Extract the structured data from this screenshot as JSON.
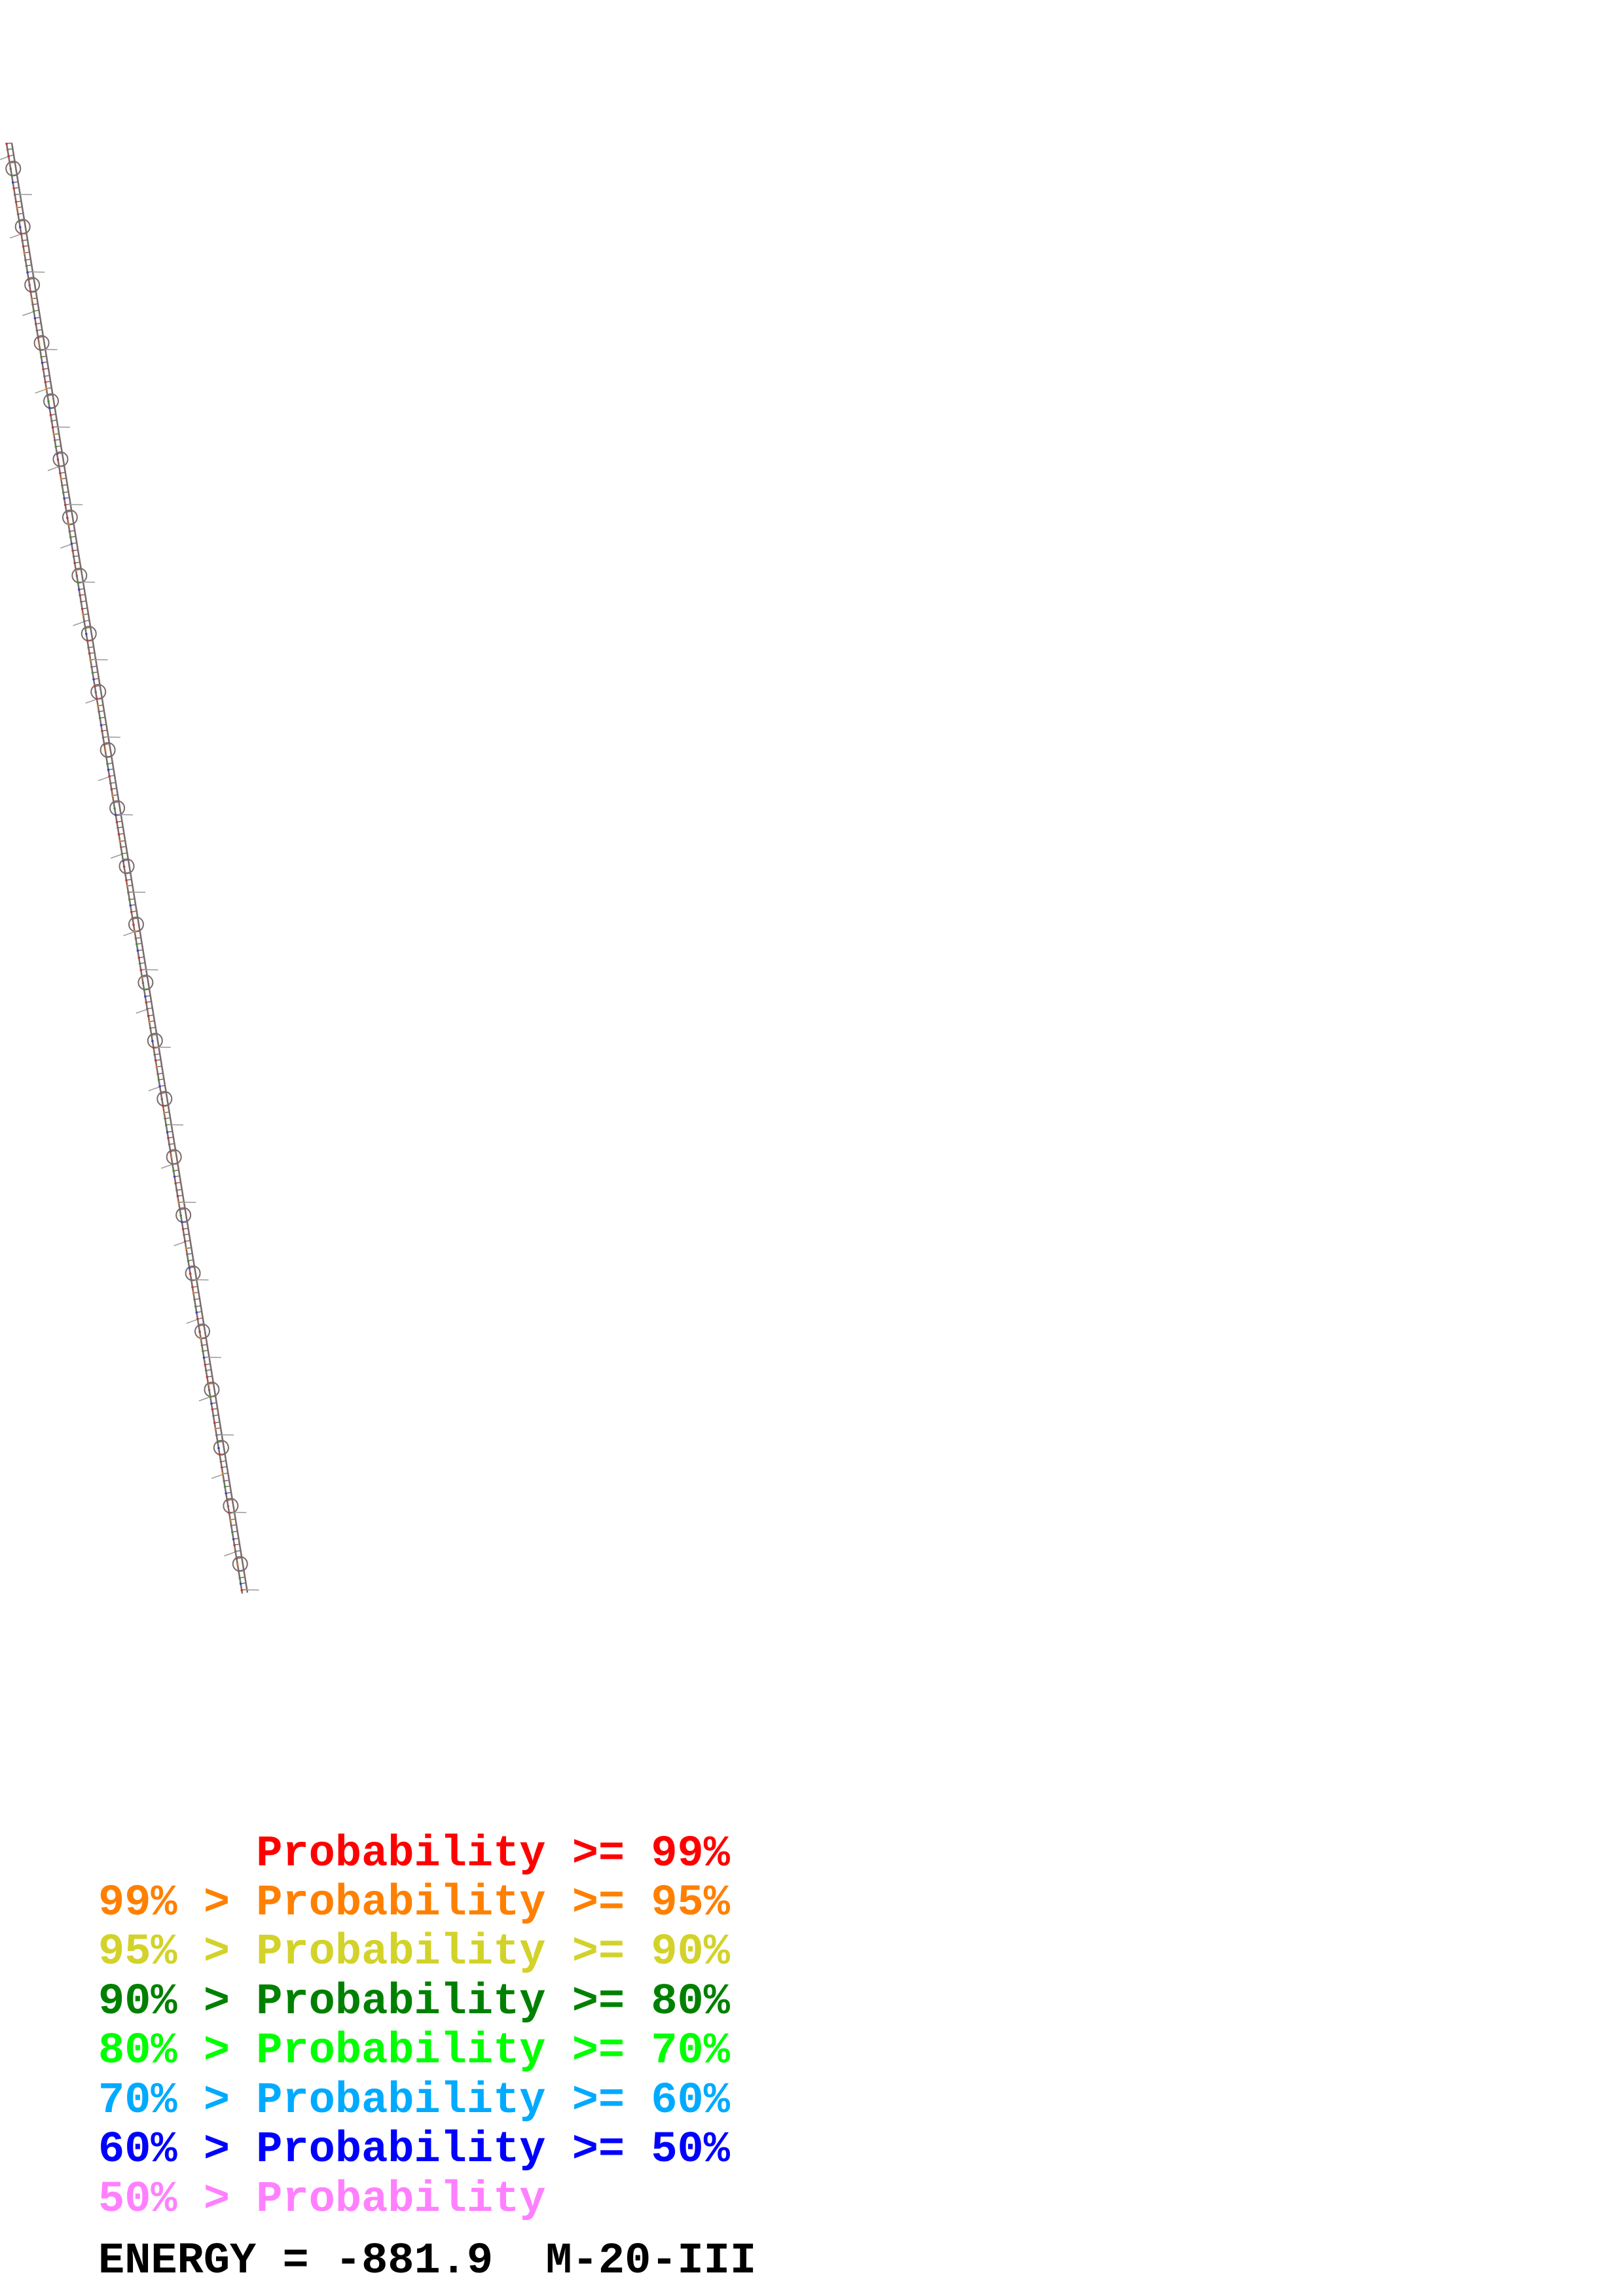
{
  "legend": [
    {
      "text": "      Probability >= 99%",
      "color": "#ff0000"
    },
    {
      "text": "99% > Probability >= 95%",
      "color": "#ff8000"
    },
    {
      "text": "95% > Probability >= 90%",
      "color": "#d2d22a"
    },
    {
      "text": "90% > Probability >= 80%",
      "color": "#008000"
    },
    {
      "text": "80% > Probability >= 70%",
      "color": "#00ff00"
    },
    {
      "text": "70% > Probability >= 60%",
      "color": "#00aaff"
    },
    {
      "text": "60% > Probability >= 50%",
      "color": "#0000ff"
    },
    {
      "text": "50% > Probability",
      "color": "#ff80ff"
    }
  ],
  "footer": {
    "text": "ENERGY = -881.9  M-20-III",
    "color": "#000000"
  },
  "structure": {
    "backbone_color": "#7a6a6a",
    "type": "RNA secondary structure, long linear helix"
  }
}
